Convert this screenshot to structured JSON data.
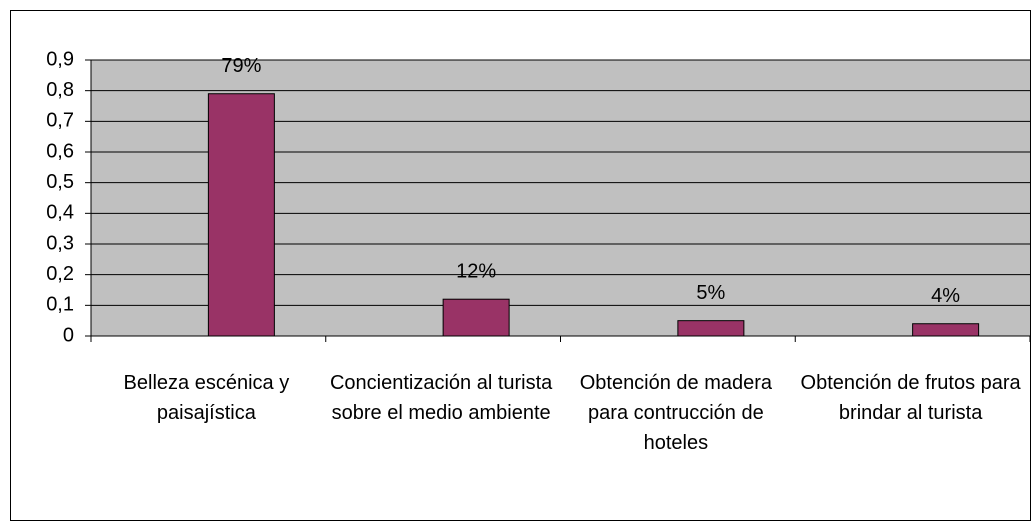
{
  "chart_data": {
    "type": "bar",
    "categories": [
      "Belleza escénica y paisajística",
      "Concientización al turista sobre el medio ambiente",
      "Obtención de madera para contrucción de hoteles",
      "Obtención de frutos para brindar al turista"
    ],
    "values": [
      0.79,
      0.12,
      0.05,
      0.04
    ],
    "value_labels": [
      "79%",
      "12%",
      "5%",
      "4%"
    ],
    "color": "#993366",
    "ylim": [
      0,
      0.9
    ],
    "yticks": [
      0,
      {
        "value": 0.1,
        "label": "0,1"
      },
      {
        "value": 0.2,
        "label": "0,2"
      },
      {
        "value": 0.3,
        "label": "0,3"
      },
      {
        "value": 0.4,
        "label": "0,4"
      },
      {
        "value": 0.5,
        "label": "0,5"
      },
      {
        "value": 0.6,
        "label": "0,6"
      },
      {
        "value": 0.7,
        "label": "0,7"
      },
      {
        "value": 0.8,
        "label": "0,8"
      },
      {
        "value": 0.9,
        "label": "0,9"
      }
    ],
    "grid": true
  }
}
